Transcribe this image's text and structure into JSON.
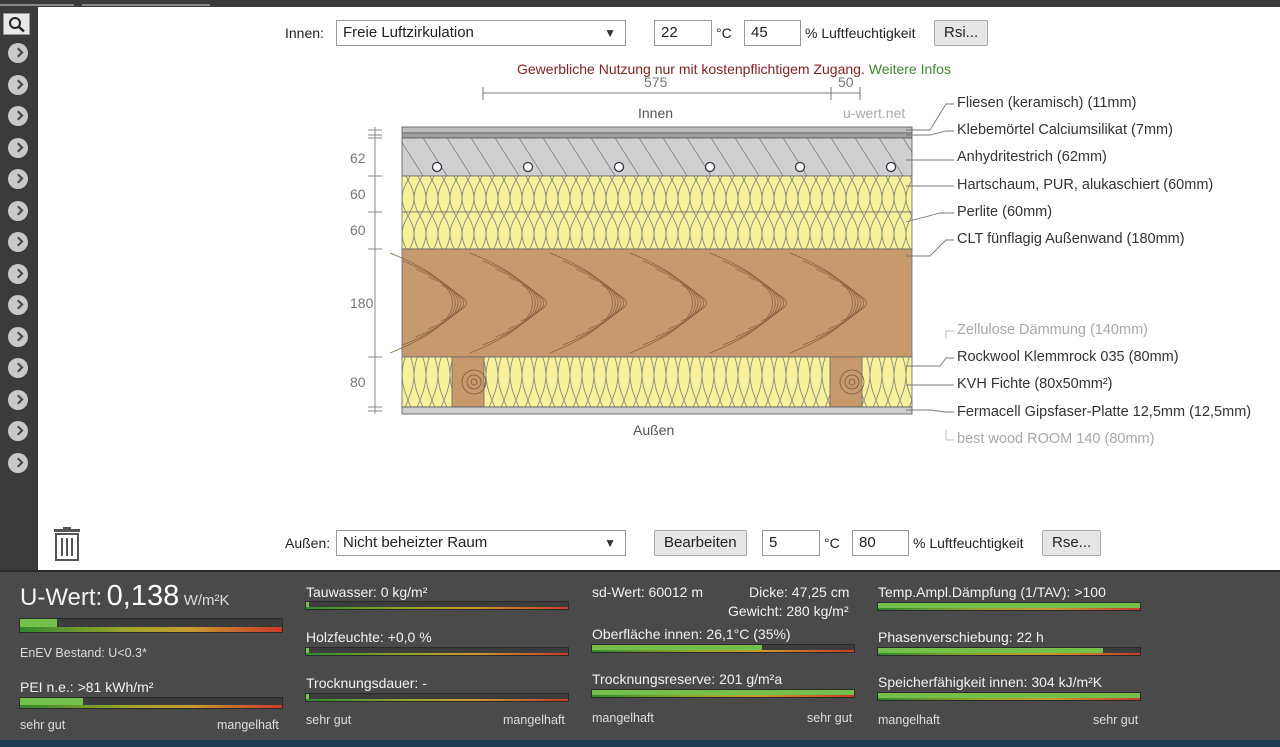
{
  "inside": {
    "label": "Innen:",
    "select_value": "Freie Luftzirkulation",
    "temp": "22",
    "temp_unit": "°C",
    "humidity": "45",
    "humidity_unit": "% Luftfeuchtigkeit",
    "rsi_button": "Rsi..."
  },
  "outside": {
    "label": "Außen:",
    "select_value": "Nicht beheizter Raum",
    "edit_button": "Bearbeiten",
    "temp": "5",
    "temp_unit": "°C",
    "humidity": "80",
    "humidity_unit": "% Luftfeuchtigkeit",
    "rse_button": "Rse..."
  },
  "notice": {
    "text": "Gewerbliche Nutzung nur mit kostenpflichtigem Zugang.",
    "link": "Weitere Infos"
  },
  "diagram": {
    "dim_top_main": "575",
    "dim_top_side": "50",
    "innen_label": "Innen",
    "watermark": "u-wert.net",
    "aussen_label": "Außen",
    "layer_thickness_labels": [
      "62",
      "60",
      "60",
      "180",
      "80"
    ]
  },
  "layers": [
    {
      "label": "Fliesen (keramisch) (11mm)",
      "muted": false
    },
    {
      "label": "Klebemörtel Calciumsilikat (7mm)",
      "muted": false
    },
    {
      "label": "Anhydritestrich (62mm)",
      "muted": false
    },
    {
      "label": "Hartschaum, PUR, alukaschiert (60mm)",
      "muted": false
    },
    {
      "label": "Perlite (60mm)",
      "muted": false
    },
    {
      "label": "CLT fünflagig Außenwand (180mm)",
      "muted": false
    },
    {
      "label": "Zellulose Dämmung (140mm)",
      "muted": true
    },
    {
      "label": "Rockwool Klemmrock 035 (80mm)",
      "muted": false
    },
    {
      "label": "KVH Fichte (80x50mm²)",
      "muted": false
    },
    {
      "label": "Fermacell Gipsfaser-Platte 12,5mm (12,5mm)",
      "muted": false
    },
    {
      "label": "best wood ROOM 140 (80mm)",
      "muted": true
    }
  ],
  "results": {
    "u_label": "U-Wert:",
    "u_value": "0,138",
    "u_unit": "W/m²K",
    "u_bar_fraction": 0.14,
    "enev": "EnEV Bestand: U<0.3*",
    "pei": "PEI n.e.: >81 kWh/m²",
    "pei_fraction": 0.24,
    "scale_good": "sehr gut",
    "scale_bad": "mangelhaft",
    "tauwasser": "Tauwasser: 0 kg/m²",
    "tauwasser_fraction": 0.01,
    "holzfeuchte": "Holzfeuchte: +0,0 %",
    "holzfeuchte_fraction": 0.01,
    "trocknungsdauer": "Trocknungsdauer: -",
    "trocknungsdauer_fraction": 0.01,
    "sd_wert": "sd-Wert: 60012 m",
    "dicke": "Dicke: 47,25 cm",
    "gewicht": "Gewicht: 280 kg/m²",
    "oberflaeche": "Oberfläche innen: 26,1°C (35%)",
    "oberflaeche_fraction": 0.65,
    "trocknungsreserve": "Trocknungsreserve: 201 g/m²a",
    "trocknungsreserve_fraction": 1.0,
    "temp_ampl": "Temp.Ampl.Dämpfung (1/TAV): >100",
    "temp_ampl_fraction": 1.0,
    "phasen": "Phasenverschiebung: 22 h",
    "phasen_fraction": 0.86,
    "speicher": "Speicherfähigkeit innen: 304 kJ/m²K",
    "speicher_fraction": 1.0
  },
  "colors": {
    "bar_fill": "#74c04a",
    "panel_bg": "#4a4a4a",
    "sidebar_bg": "#3b3b3b",
    "notice_red": "#8b2020",
    "notice_green": "#3c8a2e"
  },
  "icons": {
    "search": "search-icon",
    "sidebar_arrow": "chevron-right-icon",
    "trash": "trash-icon"
  }
}
